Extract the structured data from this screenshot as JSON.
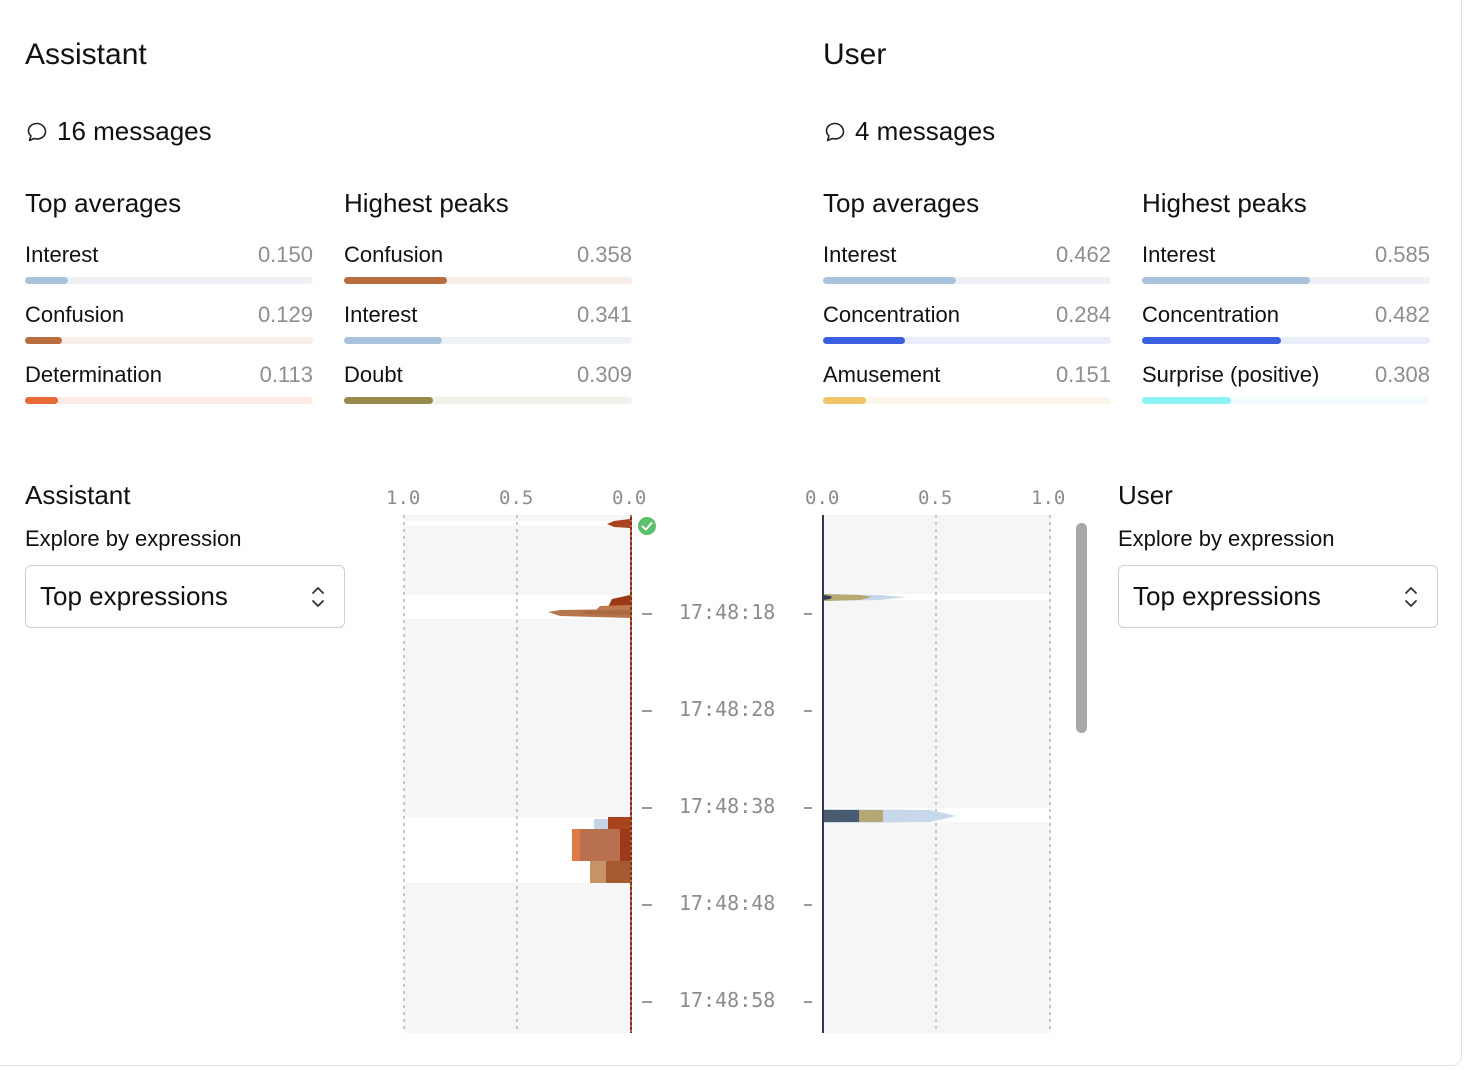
{
  "assistant": {
    "title": "Assistant",
    "messages": "16 messages",
    "top_averages_label": "Top averages",
    "highest_peaks_label": "Highest peaks",
    "top_averages": [
      {
        "name": "Interest",
        "value": "0.150",
        "fraction": 0.15,
        "color": "#a9c3dc",
        "track": "#eef2f6"
      },
      {
        "name": "Confusion",
        "value": "0.129",
        "fraction": 0.129,
        "color": "#b86d3f",
        "track": "#f8ede7"
      },
      {
        "name": "Determination",
        "value": "0.113",
        "fraction": 0.113,
        "color": "#e8693a",
        "track": "#fcebe4"
      }
    ],
    "highest_peaks": [
      {
        "name": "Confusion",
        "value": "0.358",
        "fraction": 0.358,
        "color": "#b86d3f",
        "track": "#f8ede7"
      },
      {
        "name": "Interest",
        "value": "0.341",
        "fraction": 0.341,
        "color": "#a9c3dc",
        "track": "#eef2f6"
      },
      {
        "name": "Doubt",
        "value": "0.309",
        "fraction": 0.309,
        "color": "#968b4c",
        "track": "#f1f0ea"
      }
    ],
    "explore_title": "Assistant",
    "explore_label": "Explore by expression",
    "select_value": "Top expressions"
  },
  "user": {
    "title": "User",
    "messages": "4 messages",
    "top_averages_label": "Top averages",
    "highest_peaks_label": "Highest peaks",
    "top_averages": [
      {
        "name": "Interest",
        "value": "0.462",
        "fraction": 0.462,
        "color": "#a9c3dc",
        "track": "#eef2f6"
      },
      {
        "name": "Concentration",
        "value": "0.284",
        "fraction": 0.284,
        "color": "#3a5fe0",
        "track": "#eaeefb"
      },
      {
        "name": "Amusement",
        "value": "0.151",
        "fraction": 0.151,
        "color": "#f0c56a",
        "track": "#fcf5ea"
      }
    ],
    "highest_peaks": [
      {
        "name": "Interest",
        "value": "0.585",
        "fraction": 0.585,
        "color": "#a9c3dc",
        "track": "#eef2f6"
      },
      {
        "name": "Concentration",
        "value": "0.482",
        "fraction": 0.482,
        "color": "#3a5fe0",
        "track": "#eaeefb"
      },
      {
        "name": "Surprise (positive)",
        "value": "0.308",
        "fraction": 0.308,
        "color": "#8ef3f5",
        "track": "#f0fcfd"
      }
    ],
    "explore_title": "User",
    "explore_label": "Explore by expression",
    "select_value": "Top expressions"
  },
  "timeline": {
    "assistant_axis": [
      "1.0",
      "0.5",
      "0.0"
    ],
    "user_axis": [
      "0.0",
      "0.5",
      "1.0"
    ],
    "times": [
      "17:48:18",
      "17:48:28",
      "17:48:38",
      "17:48:48",
      "17:48:58"
    ],
    "assistant_line_color": "#8b2c12",
    "user_line_color": "#2f3b4e",
    "status_color": "#5cbf6a"
  }
}
